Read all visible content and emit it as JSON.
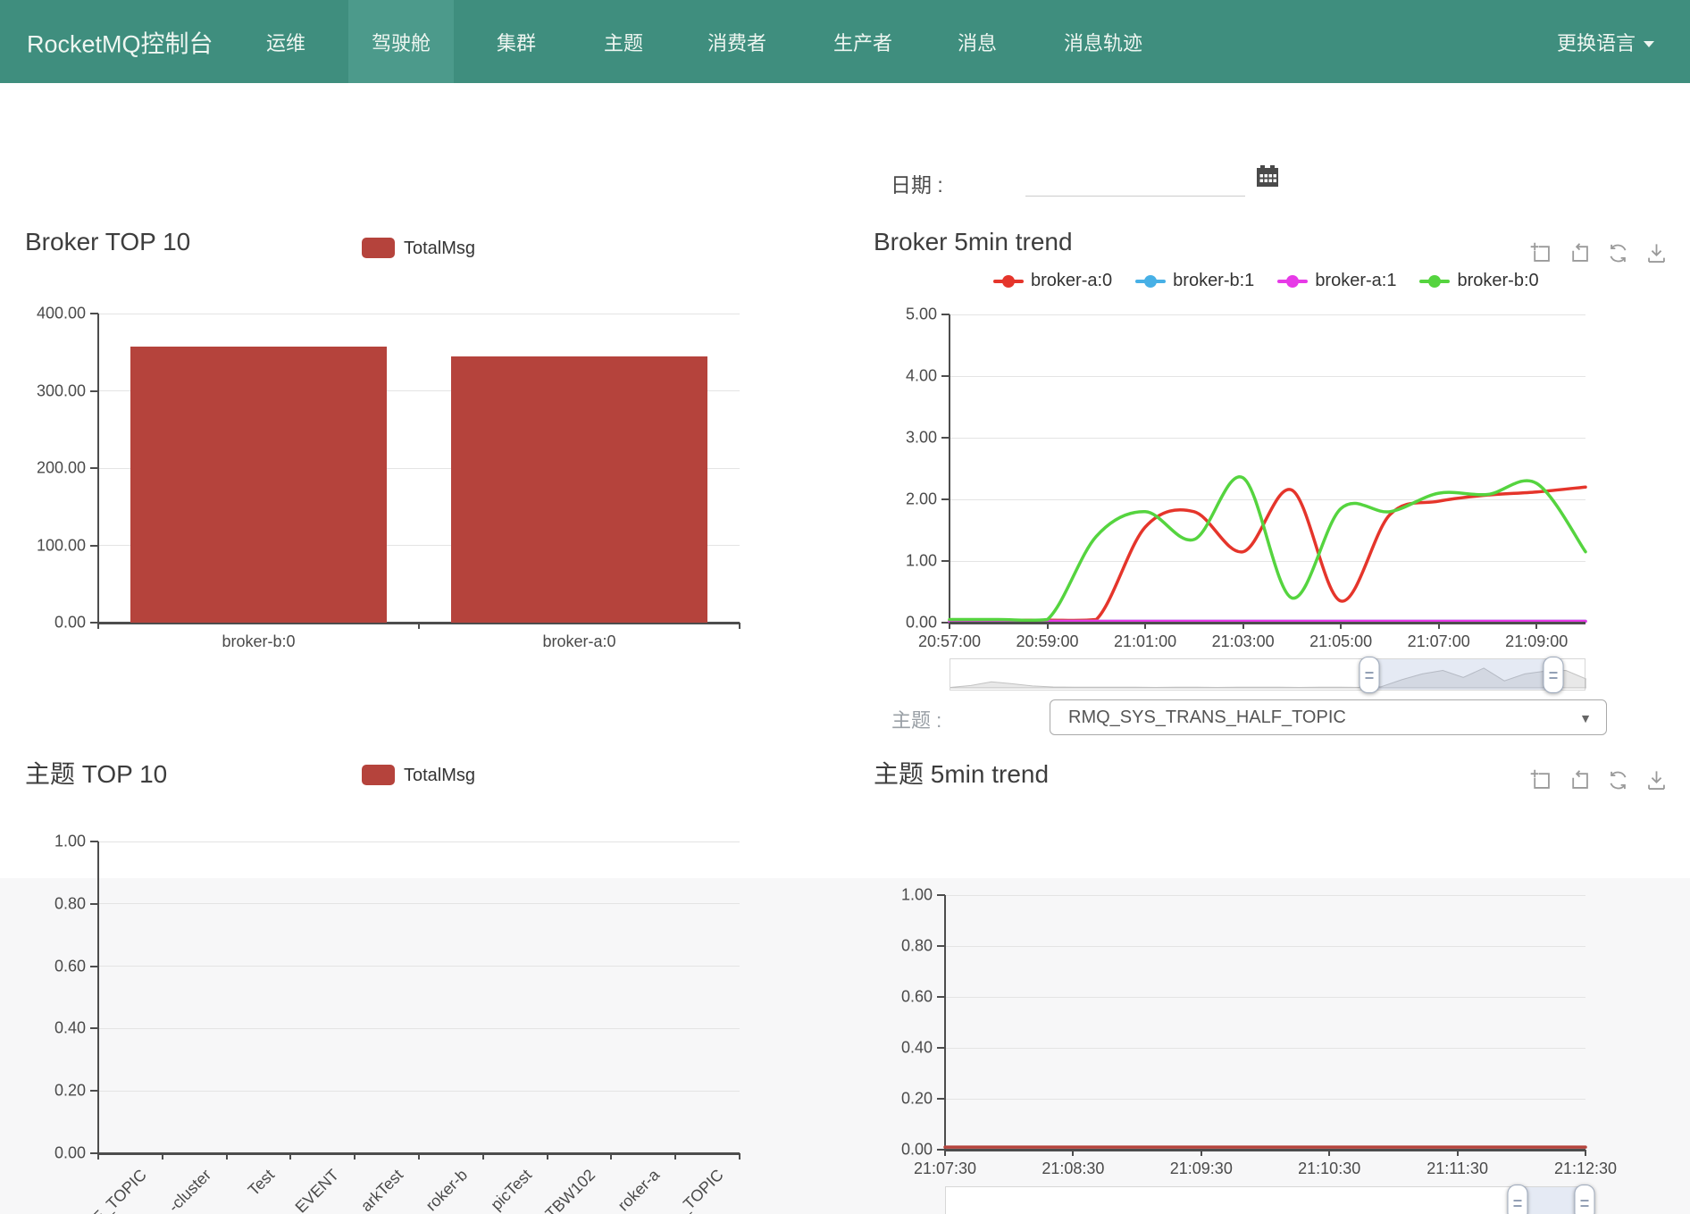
{
  "navbar": {
    "brand": "RocketMQ控制台",
    "items": [
      {
        "label": "运维",
        "active": false
      },
      {
        "label": "驾驶舱",
        "active": true
      },
      {
        "label": "集群",
        "active": false
      },
      {
        "label": "主题",
        "active": false
      },
      {
        "label": "消费者",
        "active": false
      },
      {
        "label": "生产者",
        "active": false
      },
      {
        "label": "消息",
        "active": false
      },
      {
        "label": "消息轨迹",
        "active": false
      }
    ],
    "language_switch": "更换语言",
    "colors": {
      "background": "#3f8e7e",
      "active_background": "#4c9a8b",
      "text": "#eef6f1"
    }
  },
  "date_filter": {
    "label": "日期 :",
    "value": ""
  },
  "topic_filter": {
    "label": "主题 :",
    "selected": "RMQ_SYS_TRANS_HALF_TOPIC"
  },
  "toolbox_icons": [
    "area-zoom",
    "zoom-restore",
    "refresh",
    "save-as-image"
  ],
  "chart_data": [
    {
      "id": "broker_top10",
      "type": "bar",
      "title": "Broker TOP 10",
      "legend": [
        "TotalMsg"
      ],
      "bar_color": "#b5433c",
      "categories": [
        "broker-b:0",
        "broker-a:0"
      ],
      "values": [
        357,
        345
      ],
      "ylim": [
        0,
        400
      ],
      "y_ticks": [
        "0.00",
        "100.00",
        "200.00",
        "300.00",
        "400.00"
      ],
      "grid": true
    },
    {
      "id": "broker_5min_trend",
      "type": "line",
      "title": "Broker 5min trend",
      "ylim": [
        0,
        5
      ],
      "y_ticks": [
        "0.00",
        "1.00",
        "2.00",
        "3.00",
        "4.00",
        "5.00"
      ],
      "x_count": 14,
      "x_ticks": [
        {
          "i": 0,
          "label": "20:57:00"
        },
        {
          "i": 2,
          "label": "20:59:00"
        },
        {
          "i": 4,
          "label": "21:01:00"
        },
        {
          "i": 6,
          "label": "21:03:00"
        },
        {
          "i": 8,
          "label": "21:05:00"
        },
        {
          "i": 10,
          "label": "21:07:00"
        },
        {
          "i": 12,
          "label": "21:09:00"
        }
      ],
      "series": [
        {
          "name": "broker-a:0",
          "color": "#e5352b",
          "values": [
            0.04,
            0.04,
            0.04,
            0.05,
            1.55,
            1.8,
            1.15,
            2.15,
            0.35,
            1.75,
            1.97,
            2.07,
            2.12,
            2.2
          ]
        },
        {
          "name": "broker-b:1",
          "color": "#47b0e6",
          "values": [
            0,
            0,
            0,
            0,
            0,
            0,
            0,
            0,
            0,
            0,
            0,
            0,
            0,
            0
          ]
        },
        {
          "name": "broker-a:1",
          "color": "#e73ae7",
          "values": [
            0,
            0,
            0,
            0,
            0,
            0,
            0,
            0,
            0,
            0,
            0,
            0,
            0,
            0
          ]
        },
        {
          "name": "broker-b:0",
          "color": "#55d43f",
          "values": [
            0.05,
            0.05,
            0.05,
            1.4,
            1.8,
            1.35,
            2.35,
            0.4,
            1.85,
            1.8,
            2.1,
            2.08,
            2.26,
            1.15
          ]
        }
      ],
      "datazoom": {
        "start_pct": 66,
        "end_pct": 95,
        "minimap": [
          0.02,
          0.1,
          0.26,
          0.18,
          0.08,
          0.04,
          0.03,
          0.03,
          0.03,
          0.03,
          0.02,
          0.03,
          0.03,
          0.02,
          0.03,
          0.03,
          0.03,
          0.02,
          0.03,
          0.03,
          0.02,
          0.05,
          0.35,
          0.6,
          0.75,
          0.45,
          0.85,
          0.3,
          0.6,
          0.72,
          0.75,
          0.38
        ]
      }
    },
    {
      "id": "topic_top10",
      "type": "bar",
      "title": "主题 TOP 10",
      "legend": [
        "TotalMsg"
      ],
      "bar_color": "#b5433c",
      "categories": [
        "E_TOPIC",
        "-cluster",
        "Test",
        "EVENT",
        "arkTest",
        "roker-b",
        "picTest",
        "TBW102",
        "roker-a",
        "_TOPIC"
      ],
      "values": [
        0,
        0,
        0,
        0,
        0,
        0,
        0,
        0,
        0,
        0
      ],
      "ylim": [
        0,
        1
      ],
      "y_ticks": [
        "0.00",
        "0.20",
        "0.40",
        "0.60",
        "0.80",
        "1.00"
      ],
      "x_label_rotate": 45
    },
    {
      "id": "topic_5min_trend",
      "type": "line",
      "title": "主题 5min trend",
      "ylim": [
        0,
        1
      ],
      "y_ticks": [
        "0.00",
        "0.20",
        "0.40",
        "0.60",
        "0.80",
        "1.00"
      ],
      "x_count": 6,
      "x_ticks": [
        {
          "i": 0,
          "label": "21:07:30"
        },
        {
          "i": 1,
          "label": "21:08:30"
        },
        {
          "i": 2,
          "label": "21:09:30"
        },
        {
          "i": 3,
          "label": "21:10:30"
        },
        {
          "i": 4,
          "label": "21:11:30"
        },
        {
          "i": 5,
          "label": "21:12:30"
        }
      ],
      "series": [
        {
          "name": "TotalMsg",
          "color": "#b5433c",
          "values": [
            0.01,
            0.01,
            0.01,
            0.01,
            0.01,
            0.01
          ]
        }
      ],
      "datazoom": {
        "start_pct": 89.5,
        "end_pct": 100,
        "minimap": [
          0.05,
          0.05,
          0.05,
          0.05,
          0.05,
          0.05,
          0.05,
          0.05,
          0.05,
          0.05
        ]
      }
    }
  ]
}
